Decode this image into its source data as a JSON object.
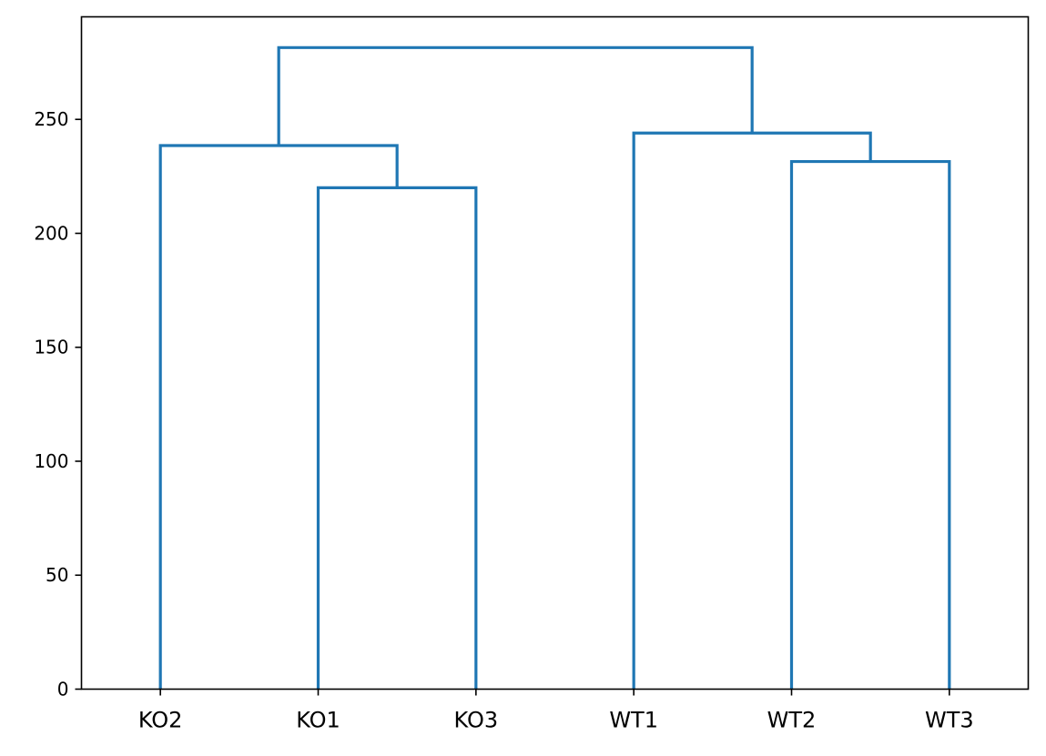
{
  "chart_data": {
    "type": "dendrogram",
    "title": "",
    "xlabel": "",
    "ylabel": "",
    "leaves": [
      "KO2",
      "KO1",
      "KO3",
      "WT1",
      "WT2",
      "WT3"
    ],
    "ylim": [
      0,
      295
    ],
    "yticks": [
      0,
      50,
      100,
      150,
      200,
      250
    ],
    "grid": false,
    "legend": "none",
    "color": "#1f77b4",
    "links": [
      {
        "left": "KO1",
        "right": "KO3",
        "height": 220
      },
      {
        "left": "KO2",
        "right": "KO1+KO3",
        "height": 238.5
      },
      {
        "left": "WT2",
        "right": "WT3",
        "height": 231.5
      },
      {
        "left": "WT1",
        "right": "WT2+WT3",
        "height": 244
      },
      {
        "left": "KO2+KO1+KO3",
        "right": "WT1+WT2+WT3",
        "height": 281.5
      }
    ],
    "links_index": [
      {
        "i": 1,
        "j": 2,
        "height": 220
      },
      {
        "i": 0,
        "j": 6,
        "height": 238.5
      },
      {
        "i": 4,
        "j": 5,
        "height": 231.5
      },
      {
        "i": 3,
        "j": 8,
        "height": 244
      },
      {
        "i": 7,
        "j": 9,
        "height": 281.5
      }
    ]
  }
}
